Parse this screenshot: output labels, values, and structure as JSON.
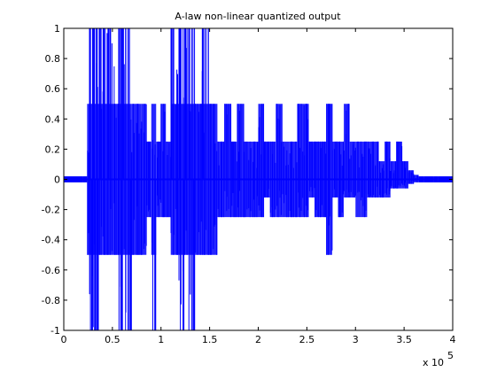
{
  "chart_data": {
    "type": "line",
    "title": "A-law non-linear quantized output",
    "xlabel": "",
    "ylabel": "",
    "xlim": [
      0,
      400000
    ],
    "ylim": [
      -1,
      1
    ],
    "x_ticks": [
      0,
      0.5,
      1,
      1.5,
      2,
      2.5,
      3,
      3.5,
      4
    ],
    "x_tick_labels": [
      "0",
      "0.5",
      "1",
      "1.5",
      "2",
      "2.5",
      "3",
      "3.5",
      "4"
    ],
    "x_scale_label": "x 10",
    "x_scale_exponent": "5",
    "y_ticks": [
      1,
      0.8,
      0.6,
      0.4,
      0.2,
      0,
      -0.2,
      -0.4,
      -0.6,
      -0.8,
      -1
    ],
    "y_tick_labels": [
      "1",
      "0.8",
      "0.6",
      "0.4",
      "0.2",
      "0",
      "-0.2",
      "-0.4",
      "-0.6",
      "-0.8",
      "-1"
    ],
    "grid": false,
    "line_color": "#0000ff",
    "series": [
      {
        "x": [
          0,
          20000,
          24000,
          26000,
          30000,
          33000,
          36000,
          40000,
          45000,
          52000,
          56000,
          60000,
          70000,
          75000,
          80000,
          85000,
          90000,
          95000,
          100000,
          105000,
          110000,
          118000,
          124000,
          128000,
          135000,
          142000,
          150000,
          158000,
          165000,
          172000,
          178000,
          185000,
          192000,
          200000,
          206000,
          212000,
          218000,
          225000,
          232000,
          240000,
          246000,
          252000,
          258000,
          264000,
          270000,
          276000,
          282000,
          288000,
          294000,
          300000,
          306000,
          312000,
          318000,
          324000,
          330000,
          336000,
          342000,
          348000,
          354000,
          360000,
          365000,
          370000,
          380000,
          385000,
          400000
        ],
        "y_max": [
          0,
          0.02,
          0.5,
          1,
          1,
          1,
          1,
          1,
          1,
          0.5,
          1,
          1,
          0.5,
          0.5,
          0.5,
          0.25,
          0.5,
          0.25,
          0.5,
          0.25,
          1,
          1,
          1,
          1,
          0.5,
          1,
          0.5,
          0.25,
          0.5,
          0.25,
          0.5,
          0.25,
          0.25,
          0.5,
          0.25,
          0.25,
          0.5,
          0.25,
          0.25,
          0.5,
          0.5,
          0.25,
          0.25,
          0.25,
          0.5,
          0.25,
          0.25,
          0.5,
          0.25,
          0.25,
          0.25,
          0.25,
          0.25,
          0.12,
          0.25,
          0.12,
          0.25,
          0.12,
          0.06,
          0.03,
          0.02,
          0.02,
          0.02,
          0,
          0
        ],
        "y_min": [
          0,
          -0.02,
          -0.5,
          -1,
          -1,
          -1,
          -0.5,
          -0.5,
          -0.5,
          -0.5,
          -1,
          -1,
          -0.5,
          -0.5,
          -0.5,
          -0.25,
          -1,
          -0.25,
          -0.25,
          -0.25,
          -0.5,
          -1,
          -0.5,
          -1,
          -0.5,
          -0.5,
          -0.5,
          -0.25,
          -0.25,
          -0.25,
          -0.25,
          -0.25,
          -0.25,
          -0.25,
          -0.12,
          -0.25,
          -0.25,
          -0.25,
          -0.25,
          -0.25,
          -0.25,
          -0.12,
          -0.25,
          -0.25,
          -0.5,
          -0.12,
          -0.25,
          -0.12,
          -0.12,
          -0.25,
          -0.25,
          -0.12,
          -0.12,
          -0.12,
          -0.12,
          -0.06,
          -0.06,
          -0.06,
          -0.03,
          -0.02,
          -0.02,
          -0.02,
          -0.02,
          0,
          0
        ]
      }
    ]
  }
}
